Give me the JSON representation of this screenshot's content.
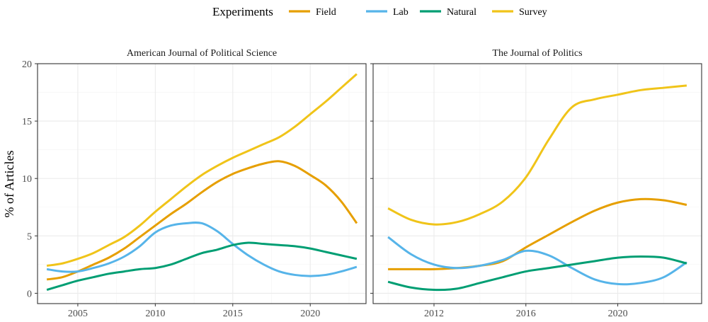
{
  "chart_data": {
    "type": "line",
    "ylabel": "% of Articles",
    "legend": {
      "title": "Experiments",
      "position": "top",
      "entries": [
        {
          "name": "Field",
          "color": "#E69F00"
        },
        {
          "name": "Lab",
          "color": "#56B4E9"
        },
        {
          "name": "Natural",
          "color": "#009E73"
        },
        {
          "name": "Survey",
          "color": "#F0C419"
        }
      ]
    },
    "grid": true,
    "panels": [
      {
        "title": "American Journal of Political Science",
        "xlim": [
          2002.4,
          2023.6
        ],
        "ylim": [
          -0.9,
          20.0
        ],
        "xticks": [
          2005,
          2010,
          2015,
          2020
        ],
        "yticks": [
          0,
          5,
          10,
          15,
          20
        ],
        "series": [
          {
            "name": "Field",
            "color": "#E69F00",
            "x": [
              2003,
              2004,
              2005,
              2006,
              2007,
              2008,
              2009,
              2010,
              2011,
              2012,
              2013,
              2014,
              2015,
              2016,
              2017,
              2018,
              2019,
              2020,
              2021,
              2022,
              2023
            ],
            "y": [
              1.2,
              1.4,
              1.9,
              2.5,
              3.1,
              3.9,
              4.9,
              5.9,
              6.9,
              7.8,
              8.8,
              9.7,
              10.4,
              10.9,
              11.3,
              11.5,
              11.1,
              10.3,
              9.4,
              8.0,
              6.1
            ]
          },
          {
            "name": "Lab",
            "color": "#56B4E9",
            "x": [
              2003,
              2004,
              2005,
              2006,
              2007,
              2008,
              2009,
              2010,
              2011,
              2012,
              2013,
              2014,
              2015,
              2016,
              2017,
              2018,
              2019,
              2020,
              2021,
              2022,
              2023
            ],
            "y": [
              2.1,
              1.9,
              1.9,
              2.2,
              2.6,
              3.2,
              4.1,
              5.3,
              5.9,
              6.1,
              6.1,
              5.4,
              4.3,
              3.3,
              2.5,
              1.9,
              1.6,
              1.5,
              1.6,
              1.9,
              2.3
            ]
          },
          {
            "name": "Natural",
            "color": "#009E73",
            "x": [
              2003,
              2004,
              2005,
              2006,
              2007,
              2008,
              2009,
              2010,
              2011,
              2012,
              2013,
              2014,
              2015,
              2016,
              2017,
              2018,
              2019,
              2020,
              2021,
              2022,
              2023
            ],
            "y": [
              0.3,
              0.7,
              1.1,
              1.4,
              1.7,
              1.9,
              2.1,
              2.2,
              2.5,
              3.0,
              3.5,
              3.8,
              4.2,
              4.4,
              4.3,
              4.2,
              4.1,
              3.9,
              3.6,
              3.3,
              3.0
            ]
          },
          {
            "name": "Survey",
            "color": "#F0C419",
            "x": [
              2003,
              2004,
              2005,
              2006,
              2007,
              2008,
              2009,
              2010,
              2011,
              2012,
              2013,
              2014,
              2015,
              2016,
              2017,
              2018,
              2019,
              2020,
              2021,
              2022,
              2023
            ],
            "y": [
              2.4,
              2.6,
              3.0,
              3.5,
              4.2,
              4.9,
              5.9,
              7.1,
              8.2,
              9.3,
              10.3,
              11.1,
              11.8,
              12.4,
              13.0,
              13.6,
              14.5,
              15.6,
              16.7,
              17.9,
              19.1
            ]
          }
        ]
      },
      {
        "title": "The Journal of Politics",
        "xlim": [
          2009.35,
          2023.65
        ],
        "ylim": [
          -0.9,
          20.0
        ],
        "xticks": [
          2012,
          2016,
          2020
        ],
        "yticks": [
          0,
          5,
          10,
          15,
          20
        ],
        "series": [
          {
            "name": "Field",
            "color": "#E69F00",
            "x": [
              2010,
              2011,
              2012,
              2013,
              2014,
              2015,
              2016,
              2017,
              2018,
              2019,
              2020,
              2021,
              2022,
              2023
            ],
            "y": [
              2.1,
              2.1,
              2.1,
              2.2,
              2.4,
              2.8,
              4.0,
              5.1,
              6.2,
              7.2,
              7.9,
              8.2,
              8.1,
              7.7
            ]
          },
          {
            "name": "Lab",
            "color": "#56B4E9",
            "x": [
              2010,
              2011,
              2012,
              2013,
              2014,
              2015,
              2016,
              2017,
              2018,
              2019,
              2020,
              2021,
              2022,
              2023
            ],
            "y": [
              4.9,
              3.4,
              2.5,
              2.2,
              2.4,
              2.9,
              3.7,
              3.3,
              2.2,
              1.2,
              0.8,
              0.9,
              1.4,
              2.7
            ]
          },
          {
            "name": "Natural",
            "color": "#009E73",
            "x": [
              2010,
              2011,
              2012,
              2013,
              2014,
              2015,
              2016,
              2017,
              2018,
              2019,
              2020,
              2021,
              2022,
              2023
            ],
            "y": [
              1.0,
              0.5,
              0.3,
              0.4,
              0.9,
              1.4,
              1.9,
              2.2,
              2.5,
              2.8,
              3.1,
              3.2,
              3.1,
              2.6
            ]
          },
          {
            "name": "Survey",
            "color": "#F0C419",
            "x": [
              2010,
              2011,
              2012,
              2013,
              2014,
              2015,
              2016,
              2017,
              2018,
              2019,
              2020,
              2021,
              2022,
              2023
            ],
            "y": [
              7.4,
              6.4,
              6.0,
              6.2,
              6.9,
              8.0,
              10.1,
              13.4,
              16.2,
              16.9,
              17.3,
              17.7,
              17.9,
              18.1
            ]
          }
        ]
      }
    ]
  }
}
